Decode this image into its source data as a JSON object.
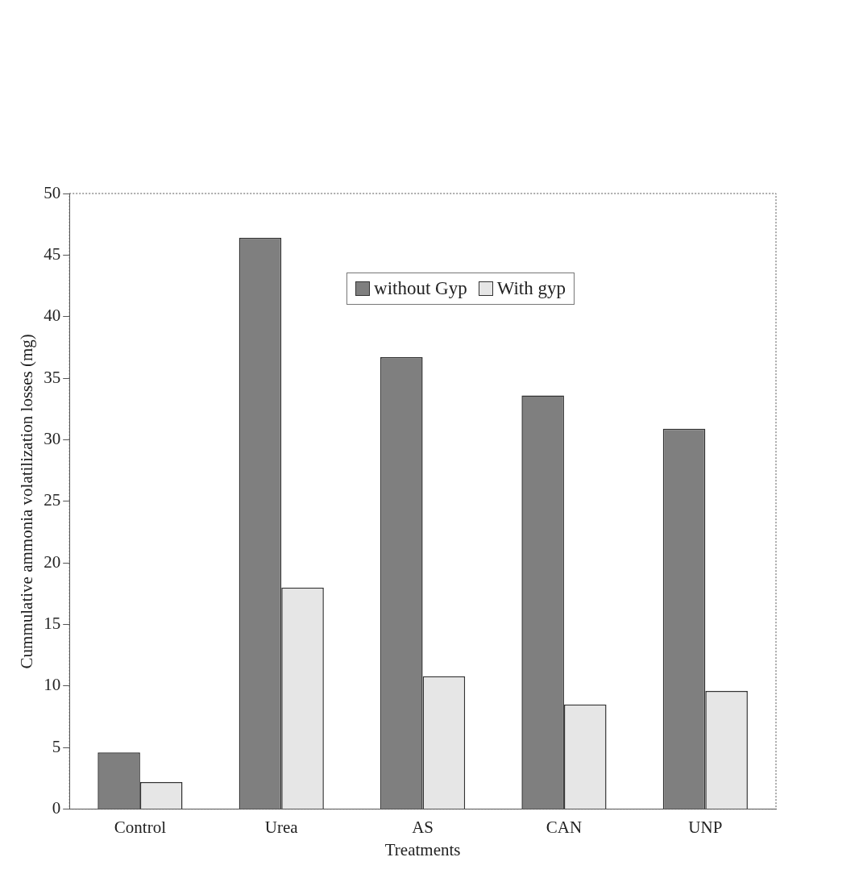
{
  "chart_data": {
    "type": "bar",
    "xlabel": "Treatments",
    "ylabel": "Cummulative ammonia volatilization losses (mg)",
    "categories": [
      "Control",
      "Urea",
      "AS",
      "CAN",
      "UNP"
    ],
    "series": [
      {
        "name": "without Gyp",
        "color": "#7f7f7f",
        "values": [
          4.6,
          46.4,
          36.7,
          33.6,
          30.9
        ]
      },
      {
        "name": "With gyp",
        "color": "#e6e6e6",
        "values": [
          2.2,
          18.0,
          10.8,
          8.5,
          9.6
        ]
      }
    ],
    "ylim": [
      0,
      50
    ],
    "yticks": [
      0,
      5,
      10,
      15,
      20,
      25,
      30,
      35,
      40,
      45,
      50
    ],
    "grid": false,
    "legend": "top right"
  }
}
